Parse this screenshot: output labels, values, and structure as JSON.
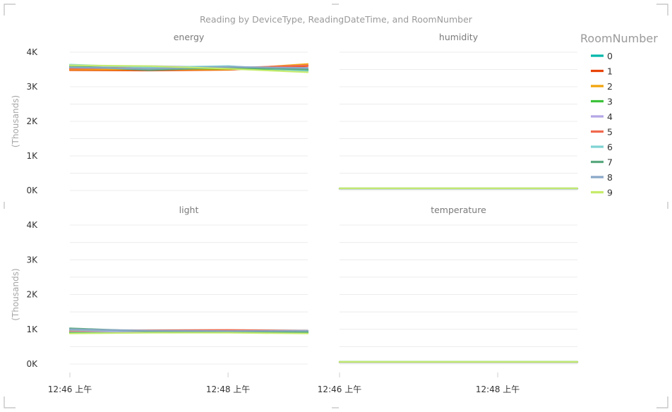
{
  "chart_data": {
    "type": "line",
    "title": "Reading by DeviceType, ReadingDateTime, and RoomNumber",
    "ylabel": "(Thousands)",
    "ylim": [
      0,
      4000
    ],
    "yticks": [
      "4K",
      "3K",
      "2K",
      "1K",
      "0K"
    ],
    "xticks": [
      "12:46 上午",
      "12:48 上午"
    ],
    "x": [
      0,
      1,
      2,
      3
    ],
    "legend": {
      "title": "RoomNumber",
      "position": "right",
      "entries": [
        {
          "name": "0",
          "color": "#01b8aa"
        },
        {
          "name": "1",
          "color": "#e8440a"
        },
        {
          "name": "2",
          "color": "#f0a30a"
        },
        {
          "name": "3",
          "color": "#3cc23a"
        },
        {
          "name": "4",
          "color": "#b4a7e5"
        },
        {
          "name": "5",
          "color": "#f06a4f"
        },
        {
          "name": "6",
          "color": "#7fd2d2"
        },
        {
          "name": "7",
          "color": "#5aa97f"
        },
        {
          "name": "8",
          "color": "#8aa7c8"
        },
        {
          "name": "9",
          "color": "#c6ec6b"
        }
      ]
    },
    "panels": [
      {
        "title": "energy",
        "series": [
          {
            "name": "0",
            "values": [
              3550,
              3520,
              3540,
              3500
            ]
          },
          {
            "name": "1",
            "values": [
              3480,
              3470,
              3490,
              3600
            ]
          },
          {
            "name": "2",
            "values": [
              3500,
              3500,
              3500,
              3660
            ]
          },
          {
            "name": "3",
            "values": [
              3560,
              3540,
              3520,
              3480
            ]
          },
          {
            "name": "4",
            "values": [
              3580,
              3600,
              3560,
              3550
            ]
          },
          {
            "name": "5",
            "values": [
              3520,
              3560,
              3540,
              3620
            ]
          },
          {
            "name": "6",
            "values": [
              3640,
              3560,
              3600,
              3450
            ]
          },
          {
            "name": "7",
            "values": [
              3600,
              3480,
              3560,
              3500
            ]
          },
          {
            "name": "8",
            "values": [
              3560,
              3520,
              3580,
              3540
            ]
          },
          {
            "name": "9",
            "values": [
              3620,
              3600,
              3520,
              3420
            ]
          }
        ]
      },
      {
        "title": "humidity",
        "series": [
          {
            "name": "0",
            "values": [
              60,
              60,
              60,
              60
            ]
          },
          {
            "name": "1",
            "values": [
              55,
              55,
              55,
              55
            ]
          },
          {
            "name": "2",
            "values": [
              58,
              58,
              58,
              58
            ]
          },
          {
            "name": "3",
            "values": [
              62,
              62,
              62,
              62
            ]
          },
          {
            "name": "4",
            "values": [
              57,
              57,
              57,
              57
            ]
          },
          {
            "name": "5",
            "values": [
              59,
              59,
              59,
              59
            ]
          },
          {
            "name": "6",
            "values": [
              61,
              61,
              61,
              61
            ]
          },
          {
            "name": "7",
            "values": [
              56,
              56,
              56,
              56
            ]
          },
          {
            "name": "8",
            "values": [
              60,
              60,
              60,
              60
            ]
          },
          {
            "name": "9",
            "values": [
              63,
              63,
              63,
              63
            ]
          }
        ]
      },
      {
        "title": "light",
        "series": [
          {
            "name": "0",
            "values": [
              920,
              950,
              940,
              930
            ]
          },
          {
            "name": "1",
            "values": [
              950,
              960,
              970,
              950
            ]
          },
          {
            "name": "2",
            "values": [
              930,
              940,
              950,
              940
            ]
          },
          {
            "name": "3",
            "values": [
              900,
              910,
              920,
              900
            ]
          },
          {
            "name": "4",
            "values": [
              940,
              930,
              940,
              950
            ]
          },
          {
            "name": "5",
            "values": [
              960,
              970,
              980,
              960
            ]
          },
          {
            "name": "6",
            "values": [
              980,
              950,
              940,
              930
            ]
          },
          {
            "name": "7",
            "values": [
              1030,
              940,
              930,
              920
            ]
          },
          {
            "name": "8",
            "values": [
              1000,
              960,
              950,
              960
            ]
          },
          {
            "name": "9",
            "values": [
              880,
              900,
              900,
              880
            ]
          }
        ]
      },
      {
        "title": "temperature",
        "series": [
          {
            "name": "0",
            "values": [
              60,
              60,
              60,
              60
            ]
          },
          {
            "name": "1",
            "values": [
              55,
              55,
              55,
              55
            ]
          },
          {
            "name": "2",
            "values": [
              58,
              58,
              58,
              58
            ]
          },
          {
            "name": "3",
            "values": [
              62,
              62,
              62,
              62
            ]
          },
          {
            "name": "4",
            "values": [
              57,
              57,
              57,
              57
            ]
          },
          {
            "name": "5",
            "values": [
              59,
              59,
              59,
              59
            ]
          },
          {
            "name": "6",
            "values": [
              61,
              61,
              61,
              61
            ]
          },
          {
            "name": "7",
            "values": [
              56,
              56,
              56,
              56
            ]
          },
          {
            "name": "8",
            "values": [
              60,
              60,
              60,
              60
            ]
          },
          {
            "name": "9",
            "values": [
              63,
              63,
              63,
              63
            ]
          }
        ]
      }
    ]
  }
}
